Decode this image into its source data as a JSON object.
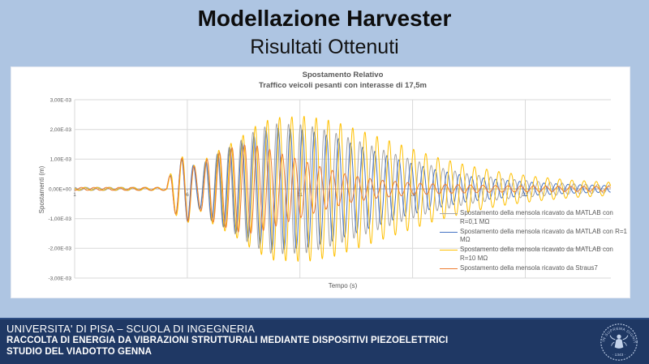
{
  "slide": {
    "title": "Modellazione Harvester",
    "subtitle": "Risultati Ottenuti",
    "background": "#aec5e2"
  },
  "footer": {
    "line1": "UNIVERSITA' DI PISA – SCUOLA DI INGEGNERIA",
    "line2": "RACCOLTA DI ENERGIA DA VIBRAZIONI STRUTTURALI MEDIANTE DISPOSITIVI PIEZOELETTRICI",
    "line3": "STUDIO DEL VIADOTTO GENNA",
    "background": "#1f3864",
    "logo": {
      "motto": "IN SUPREMA DIGNITATIS",
      "year": "· 1343 ·",
      "ink_color": "#c3d2ea"
    }
  },
  "chart_data": {
    "type": "line",
    "title": "Spostamento Relativo",
    "subtitle": "Traffico veicoli pesanti con interasse di 17,5m",
    "xlabel": "Tempo (s)",
    "ylabel": "Spostamenti (m)",
    "x_range": [
      1,
      24.8
    ],
    "x_tick_values": [
      1,
      6,
      11,
      16,
      21
    ],
    "x_tick_labels": [
      "1",
      "6",
      "11",
      "16",
      "21"
    ],
    "ylim": [
      -0.003,
      0.003
    ],
    "y_tick_labels": [
      "3,00E-03",
      "2,00E-03",
      "1,00E-03",
      "0,00E+00",
      "-1,00E-03",
      "-2,00E-03",
      "-3,00E-03"
    ],
    "grid": true,
    "grid_color": "#d9d9d9",
    "axis_color": "#a6a6a6",
    "legend_position": "lower-right-overlay",
    "waveform": {
      "frequency_hz": 1.85,
      "onset_t": 5.1,
      "pre_ripple_amplitude": 5e-05
    },
    "series": [
      {
        "name": "Spostamento della mensola ricavato da MATLAB con R=0,1 MΩ",
        "color": "#a6a6a6",
        "freq": 1.895,
        "phase": 0.15,
        "envelope": [
          [
            5.1,
            0.0002
          ],
          [
            5.35,
            0.0007
          ],
          [
            5.6,
            0.00095
          ],
          [
            6.0,
            0.0011
          ],
          [
            6.45,
            0.0006
          ],
          [
            6.9,
            0.001
          ],
          [
            7.4,
            0.0012
          ],
          [
            8.2,
            0.00155
          ],
          [
            9.0,
            0.00195
          ],
          [
            9.8,
            0.0022
          ],
          [
            11.3,
            0.00215
          ],
          [
            12.5,
            0.0019
          ],
          [
            14,
            0.0015
          ],
          [
            15.5,
            0.0011
          ],
          [
            17,
            0.00075
          ],
          [
            18.5,
            0.0005
          ],
          [
            20,
            0.00035
          ],
          [
            21.5,
            0.00025
          ],
          [
            23,
            0.00018
          ],
          [
            24.8,
            0.00013
          ]
        ]
      },
      {
        "name": "Spostamento della mensola ricavato da MATLAB con R=1 MΩ",
        "color": "#4472c4",
        "freq": 1.865,
        "phase": 0.3,
        "envelope": [
          [
            5.1,
            0.0002
          ],
          [
            5.35,
            0.0007
          ],
          [
            5.6,
            0.00095
          ],
          [
            6.0,
            0.0011
          ],
          [
            6.45,
            0.0006
          ],
          [
            6.9,
            0.001
          ],
          [
            7.4,
            0.0012
          ],
          [
            8.2,
            0.0015
          ],
          [
            9.0,
            0.0018
          ],
          [
            9.8,
            0.00205
          ],
          [
            11.3,
            0.00198
          ],
          [
            12.5,
            0.00175
          ],
          [
            14,
            0.00135
          ],
          [
            15.5,
            0.00095
          ],
          [
            17,
            0.00065
          ],
          [
            18.5,
            0.00042
          ],
          [
            20,
            0.0003
          ],
          [
            21.5,
            0.00021
          ],
          [
            23,
            0.00015
          ],
          [
            24.8,
            0.00011
          ]
        ]
      },
      {
        "name": "Spostamento della mensola ricavato da MATLAB con R=10 MΩ",
        "color": "#ffc000",
        "freq": 1.85,
        "phase": 0.0,
        "envelope": [
          [
            5.1,
            0.0002
          ],
          [
            5.35,
            0.00072
          ],
          [
            5.6,
            0.001
          ],
          [
            6.0,
            0.00118
          ],
          [
            6.45,
            0.00062
          ],
          [
            6.9,
            0.00108
          ],
          [
            7.4,
            0.0013
          ],
          [
            8.2,
            0.00165
          ],
          [
            9.0,
            0.0021
          ],
          [
            9.8,
            0.0024
          ],
          [
            11.3,
            0.00245
          ],
          [
            12.5,
            0.00228
          ],
          [
            14,
            0.00188
          ],
          [
            15.5,
            0.00148
          ],
          [
            17,
            0.00108
          ],
          [
            18.5,
            0.00078
          ],
          [
            20,
            0.00056
          ],
          [
            21.5,
            0.00041
          ],
          [
            23,
            0.0003
          ],
          [
            24.8,
            0.00022
          ]
        ]
      },
      {
        "name": "Spostamento della mensola ricavato da Straus7",
        "color": "#ed7d31",
        "freq": 1.795,
        "phase": 0.45,
        "envelope": [
          [
            5.1,
            0.0002
          ],
          [
            5.35,
            0.0007
          ],
          [
            5.6,
            0.00098
          ],
          [
            6.0,
            0.00112
          ],
          [
            6.45,
            0.0006
          ],
          [
            6.9,
            0.00102
          ],
          [
            7.4,
            0.00122
          ],
          [
            8.2,
            0.00145
          ],
          [
            8.8,
            0.0015
          ],
          [
            9.5,
            0.00138
          ],
          [
            10.3,
            0.00115
          ],
          [
            11.3,
            0.0009
          ],
          [
            12.3,
            0.00065
          ],
          [
            13.3,
            0.00045
          ],
          [
            14.5,
            0.0003
          ],
          [
            16,
            0.0002
          ],
          [
            18,
            0.00014
          ],
          [
            20,
            0.00011
          ],
          [
            22,
            9e-05
          ],
          [
            24.8,
            8e-05
          ]
        ]
      }
    ]
  }
}
